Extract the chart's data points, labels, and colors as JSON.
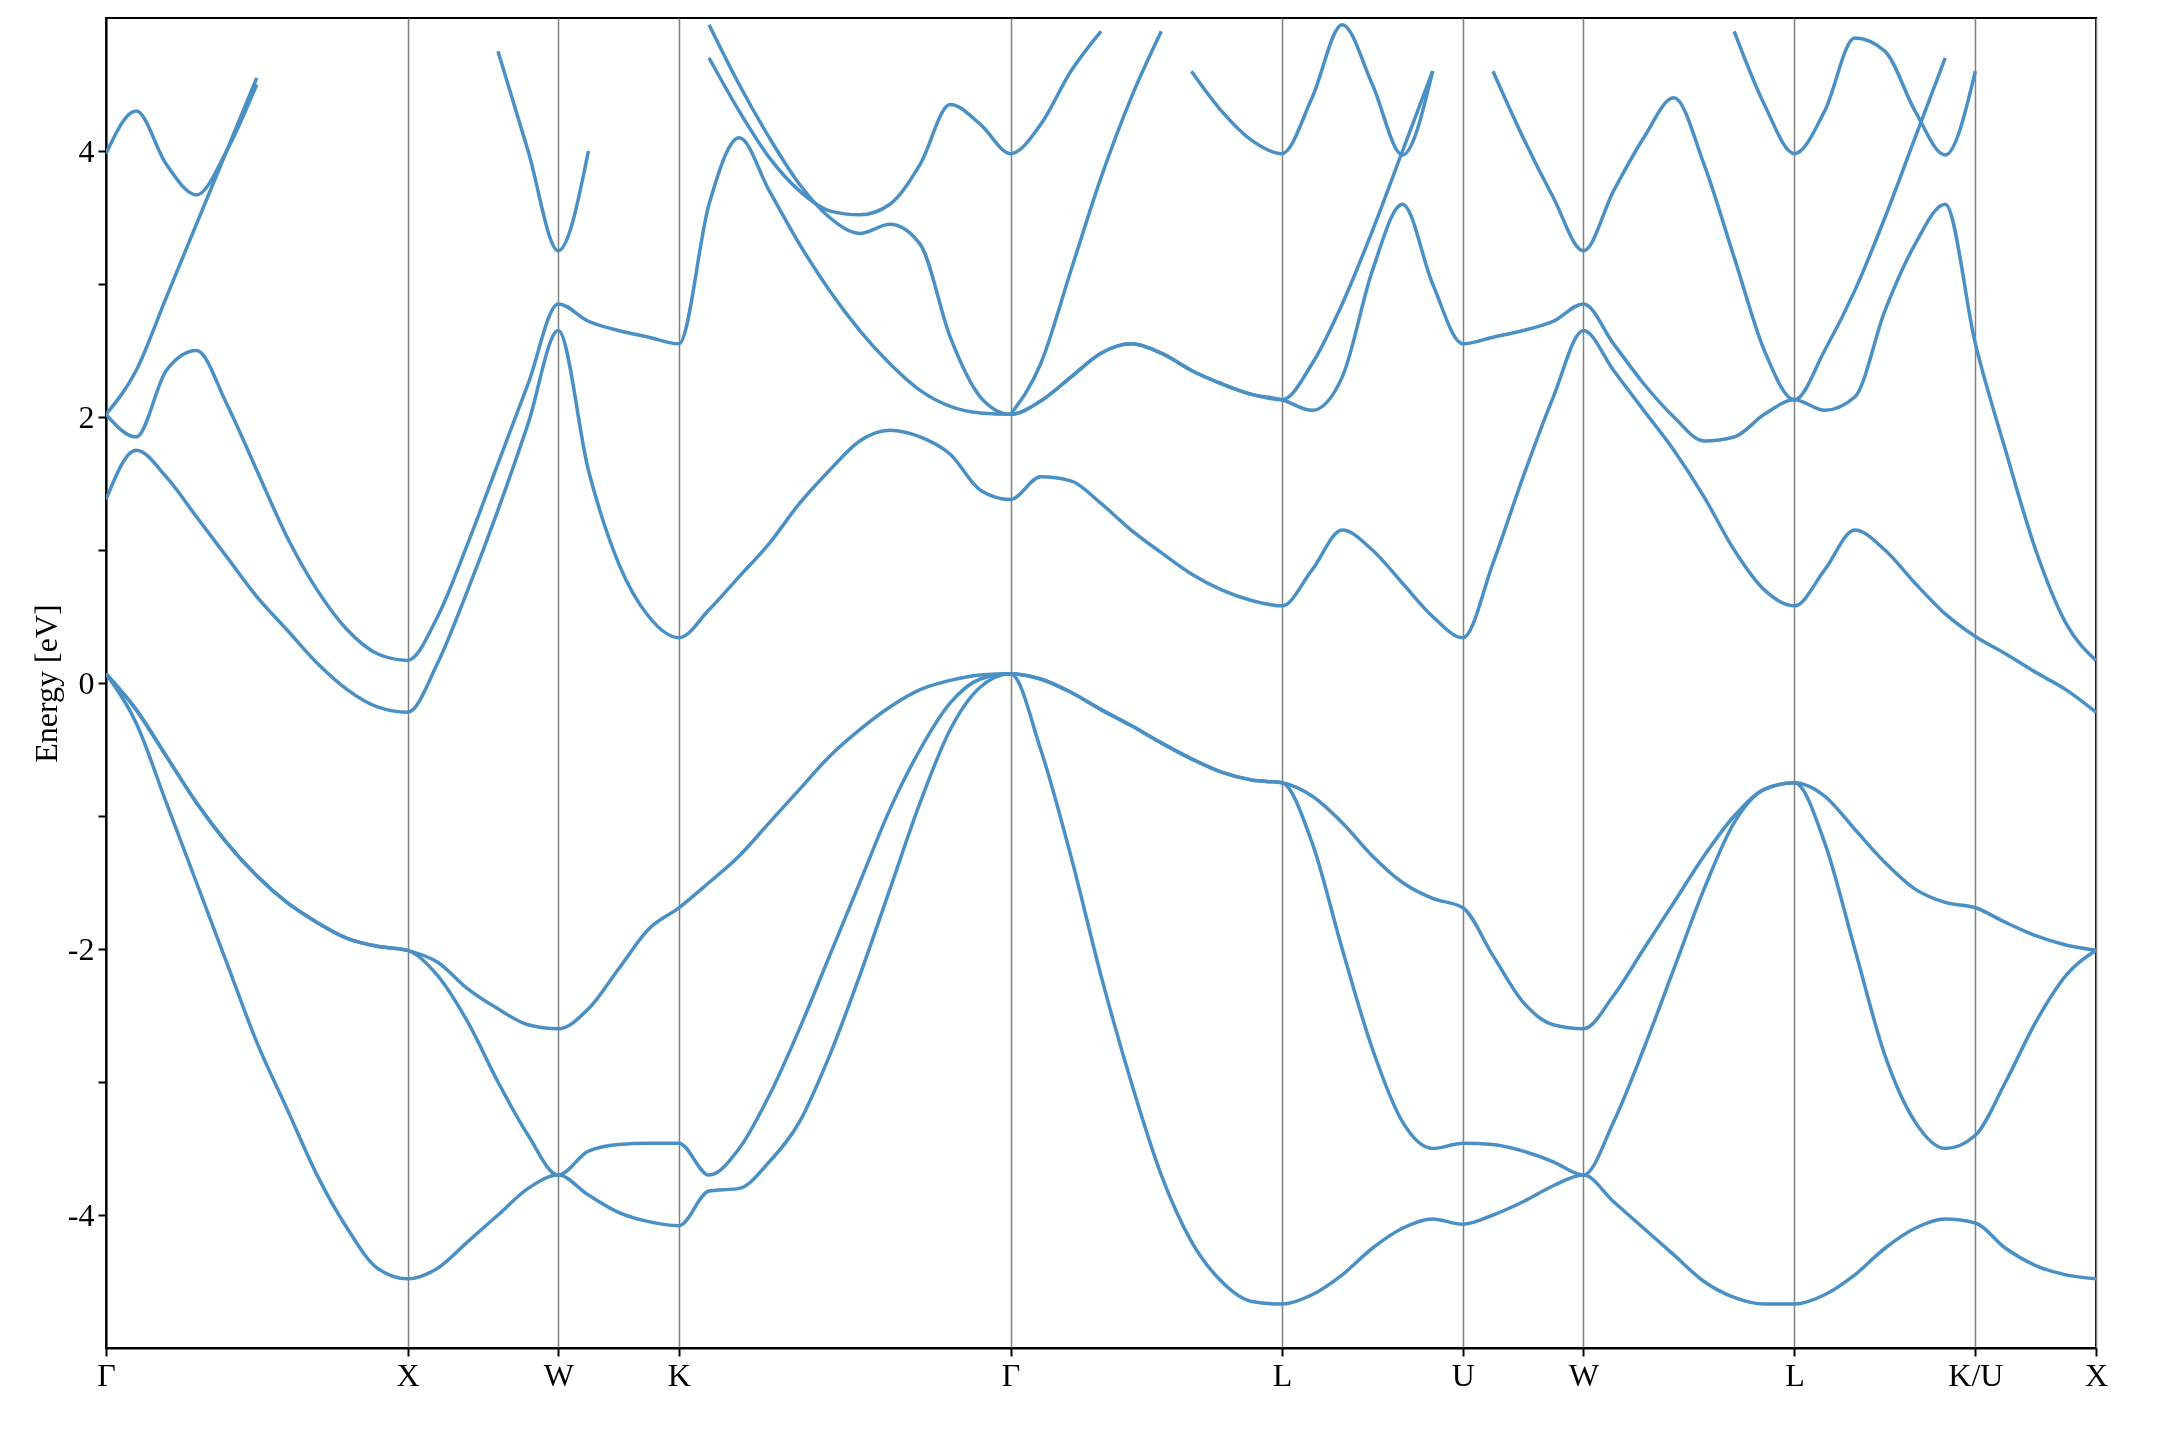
{
  "chart_data": {
    "type": "line",
    "ylabel": "Energy [eV]",
    "categories": [
      "Γ",
      null,
      null,
      null,
      null,
      null,
      null,
      null,
      null,
      null,
      "X",
      null,
      null,
      null,
      null,
      "W",
      null,
      null,
      null,
      "K",
      null,
      null,
      null,
      null,
      null,
      null,
      null,
      null,
      null,
      null,
      "Γ",
      null,
      null,
      null,
      null,
      null,
      null,
      null,
      null,
      "L",
      null,
      null,
      null,
      null,
      null,
      "U",
      null,
      null,
      null,
      "W",
      null,
      null,
      null,
      null,
      null,
      null,
      "L",
      null,
      null,
      null,
      null,
      null,
      "K/U",
      null,
      null,
      null,
      "X"
    ],
    "ylim": [
      -5,
      5
    ],
    "yticks": [
      -4,
      {
        "value": -3,
        "label": null
      },
      -2,
      {
        "value": -1,
        "label": null
      },
      0,
      {
        "value": 1,
        "label": null
      },
      2,
      {
        "value": 3,
        "label": null
      },
      4
    ],
    "grid": "x",
    "series": [
      {
        "color": "#4a90c4",
        "values": [
          0.07,
          -0.3,
          -0.9,
          -1.5,
          -2.1,
          -2.7,
          -3.2,
          -3.7,
          -4.1,
          -4.4,
          -4.48,
          -4.4,
          -4.2,
          -4.0,
          -3.8,
          -3.7,
          -3.85,
          -3.98,
          -4.05,
          -4.08,
          -3.82,
          -3.8,
          -3.6,
          -3.3,
          -2.8,
          -2.2,
          -1.55,
          -0.9,
          -0.35,
          -0.03,
          0.07,
          -0.5,
          -1.3,
          -2.2,
          -3.0,
          -3.7,
          -4.2,
          -4.5,
          -4.65,
          -4.67,
          -4.6,
          -4.45,
          -4.25,
          -4.1,
          -4.03,
          -4.07,
          -4.0,
          -3.9,
          -3.78,
          -3.7,
          -3.9,
          -4.1,
          -4.3,
          -4.5,
          -4.62,
          -4.67,
          -4.67,
          -4.6,
          -4.45,
          -4.25,
          -4.1,
          -4.03,
          -4.06,
          -4.25,
          -4.38,
          -4.45,
          -4.48
        ]
      },
      {
        "color": "#4a90c4",
        "values": [
          0.07,
          -0.2,
          -0.55,
          -0.9,
          -1.2,
          -1.45,
          -1.65,
          -1.8,
          -1.92,
          -1.98,
          -2.01,
          -2.2,
          -2.55,
          -3.0,
          -3.4,
          -3.7,
          -3.52,
          -3.47,
          -3.46,
          -3.46,
          -3.7,
          -3.5,
          -3.1,
          -2.6,
          -2.05,
          -1.5,
          -0.95,
          -0.5,
          -0.15,
          0.03,
          0.07,
          0.03,
          -0.07,
          -0.2,
          -0.32,
          -0.45,
          -0.57,
          -0.67,
          -0.73,
          -0.75,
          -1.2,
          -2.0,
          -2.75,
          -3.3,
          -3.5,
          -3.46,
          -3.47,
          -3.52,
          -3.6,
          -3.7,
          -3.3,
          -2.75,
          -2.15,
          -1.55,
          -1.05,
          -0.8,
          -0.75,
          -1.2,
          -2.0,
          -2.8,
          -3.3,
          -3.5,
          -3.4,
          -3.0,
          -2.55,
          -2.2,
          -2.01
        ]
      },
      {
        "color": "#4a90c4",
        "values": [
          0.07,
          -0.2,
          -0.55,
          -0.9,
          -1.2,
          -1.45,
          -1.65,
          -1.8,
          -1.92,
          -1.98,
          -2.01,
          -2.1,
          -2.3,
          -2.45,
          -2.57,
          -2.6,
          -2.45,
          -2.15,
          -1.85,
          -1.69,
          -1.5,
          -1.3,
          -1.05,
          -0.8,
          -0.55,
          -0.35,
          -0.18,
          -0.05,
          0.02,
          0.06,
          0.07,
          0.03,
          -0.07,
          -0.2,
          -0.32,
          -0.45,
          -0.57,
          -0.67,
          -0.73,
          -0.75,
          -0.85,
          -1.05,
          -1.3,
          -1.5,
          -1.62,
          -1.69,
          -2.05,
          -2.4,
          -2.57,
          -2.6,
          -2.35,
          -2.0,
          -1.65,
          -1.3,
          -1.0,
          -0.8,
          -0.75,
          -0.85,
          -1.1,
          -1.35,
          -1.55,
          -1.65,
          -1.69,
          -1.8,
          -1.9,
          -1.97,
          -2.01
        ]
      },
      {
        "color": "#4a90c4",
        "values": [
          1.38,
          1.75,
          1.55,
          1.25,
          0.95,
          0.65,
          0.4,
          0.15,
          -0.05,
          -0.18,
          -0.22,
          0.15,
          0.7,
          1.3,
          1.95,
          2.65,
          1.6,
          0.9,
          0.5,
          0.34,
          0.55,
          0.8,
          1.05,
          1.35,
          1.6,
          1.82,
          1.9,
          1.85,
          1.72,
          1.45,
          1.38,
          1.55,
          1.52,
          1.35,
          1.15,
          0.98,
          0.82,
          0.7,
          0.62,
          0.58,
          0.85,
          1.15,
          1.0,
          0.75,
          0.5,
          0.34,
          0.9,
          1.55,
          2.15,
          2.65,
          2.35,
          2.05,
          1.75,
          1.4,
          1.0,
          0.7,
          0.58,
          0.85,
          1.15,
          1.0,
          0.75,
          0.52,
          0.35,
          0.22,
          0.08,
          -0.05,
          -0.22
        ]
      },
      {
        "color": "#4a90c4",
        "values": [
          2.02,
          1.85,
          2.35,
          2.5,
          2.1,
          1.6,
          1.1,
          0.7,
          0.4,
          0.22,
          0.17,
          0.5,
          1.05,
          1.65,
          2.25,
          2.85,
          2.72,
          2.65,
          2.6,
          2.55,
          3.6,
          4.1,
          3.7,
          3.3,
          2.95,
          2.65,
          2.4,
          2.2,
          2.08,
          2.03,
          2.02,
          2.12,
          2.3,
          2.48,
          2.55,
          2.48,
          2.35,
          2.25,
          2.17,
          2.13,
          2.05,
          2.3,
          3.1,
          3.6,
          3.0,
          2.55,
          2.6,
          2.65,
          2.72,
          2.85,
          2.55,
          2.25,
          2.0,
          1.82,
          1.85,
          2.02,
          2.13,
          2.05,
          2.15,
          2.8,
          3.3,
          3.6,
          2.55,
          1.75,
          1.0,
          0.45,
          0.17
        ]
      },
      {
        "color": "#4a90c4",
        "values": [
          2.02,
          2.35,
          2.9,
          3.45,
          4.0,
          4.55,
          null,
          null,
          null,
          null,
          null,
          null,
          null,
          4.75,
          4.0,
          3.25,
          4.0,
          null,
          null,
          null,
          4.95,
          4.5,
          4.1,
          3.75,
          3.5,
          3.38,
          3.45,
          3.3,
          2.6,
          2.15,
          2.02,
          2.12,
          2.3,
          2.48,
          2.55,
          2.48,
          2.35,
          2.25,
          2.17,
          2.13,
          2.4,
          2.85,
          3.4,
          4.0,
          4.6,
          null,
          4.6,
          4.1,
          3.65,
          3.25,
          3.7,
          4.1,
          4.4,
          3.9,
          3.2,
          2.5,
          2.13,
          2.5,
          2.95,
          3.5,
          4.1,
          4.7,
          null,
          null,
          null,
          null,
          null
        ]
      },
      {
        "color": "#4a90c4",
        "values": [
          3.98,
          4.3,
          3.9,
          3.67,
          4.0,
          4.5,
          null,
          null,
          null,
          null,
          null,
          null,
          null,
          null,
          null,
          null,
          null,
          null,
          null,
          null,
          4.7,
          4.3,
          3.95,
          3.7,
          3.55,
          3.52,
          3.6,
          3.9,
          4.35,
          4.2,
          3.98,
          4.2,
          4.6,
          4.9,
          null,
          null,
          4.6,
          4.3,
          4.08,
          3.98,
          4.4,
          4.95,
          4.5,
          3.97,
          4.6,
          null,
          null,
          null,
          null,
          null,
          null,
          null,
          null,
          null,
          4.9,
          4.35,
          3.98,
          4.3,
          4.85,
          4.75,
          4.3,
          3.97,
          4.6,
          null,
          null,
          null,
          null
        ]
      },
      {
        "color": "#4a90c4",
        "values": [
          null,
          null,
          null,
          null,
          null,
          null,
          null,
          null,
          null,
          null,
          null,
          null,
          null,
          null,
          null,
          null,
          null,
          null,
          null,
          null,
          null,
          null,
          null,
          null,
          null,
          null,
          null,
          null,
          null,
          null,
          2.02,
          2.4,
          3.1,
          3.8,
          4.4,
          4.9,
          null,
          null,
          null,
          null,
          null,
          null,
          null,
          null,
          null,
          null,
          null,
          null,
          null,
          null,
          null,
          null,
          null,
          null,
          null,
          null,
          null,
          null,
          null,
          null,
          null,
          null,
          null,
          null,
          null,
          null,
          null
        ]
      }
    ]
  }
}
